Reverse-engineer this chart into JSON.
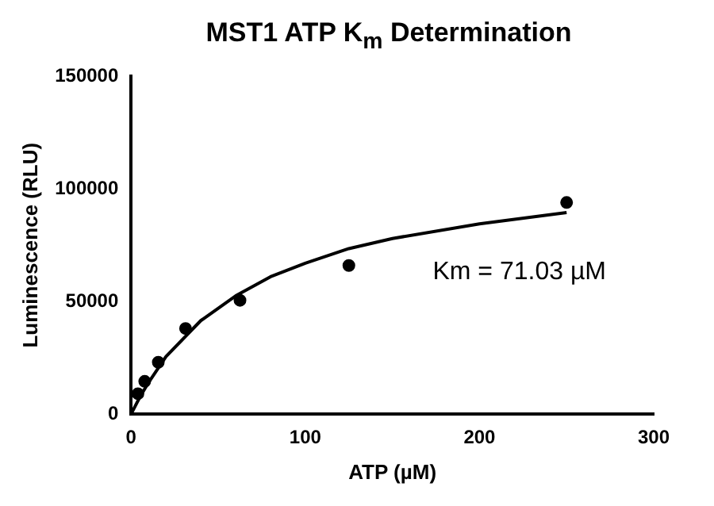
{
  "chart_data": {
    "type": "scatter",
    "title": "MST1  ATP K$_{m}$ Determination",
    "xlabel": "ATP (µM)",
    "ylabel": "Luminescence (RLU)",
    "xlim": [
      0,
      300
    ],
    "xticks": [
      0,
      100,
      200,
      300
    ],
    "ylim": [
      0,
      150000
    ],
    "yticks": [
      0,
      50000,
      100000,
      150000
    ],
    "grid": false,
    "legend": false,
    "annotations": [
      "Km = 71.03 µM"
    ],
    "series": [
      {
        "type": "scatter",
        "marker": "circle",
        "color": "#000000",
        "x": [
          3.9,
          7.8,
          15.6,
          31.25,
          62.5,
          125,
          250
        ],
        "values": [
          9000,
          14500,
          23000,
          38000,
          50500,
          66000,
          94000
        ]
      },
      {
        "type": "line",
        "marker": "none",
        "line_style": "solid",
        "color": "#000000",
        "x": [
          0,
          5,
          10,
          20,
          40,
          60,
          80,
          100,
          125,
          150,
          200,
          250
        ],
        "values": [
          0,
          7500,
          14000,
          25500,
          41500,
          52500,
          61000,
          67000,
          73500,
          78000,
          84500,
          89500
        ]
      }
    ]
  }
}
